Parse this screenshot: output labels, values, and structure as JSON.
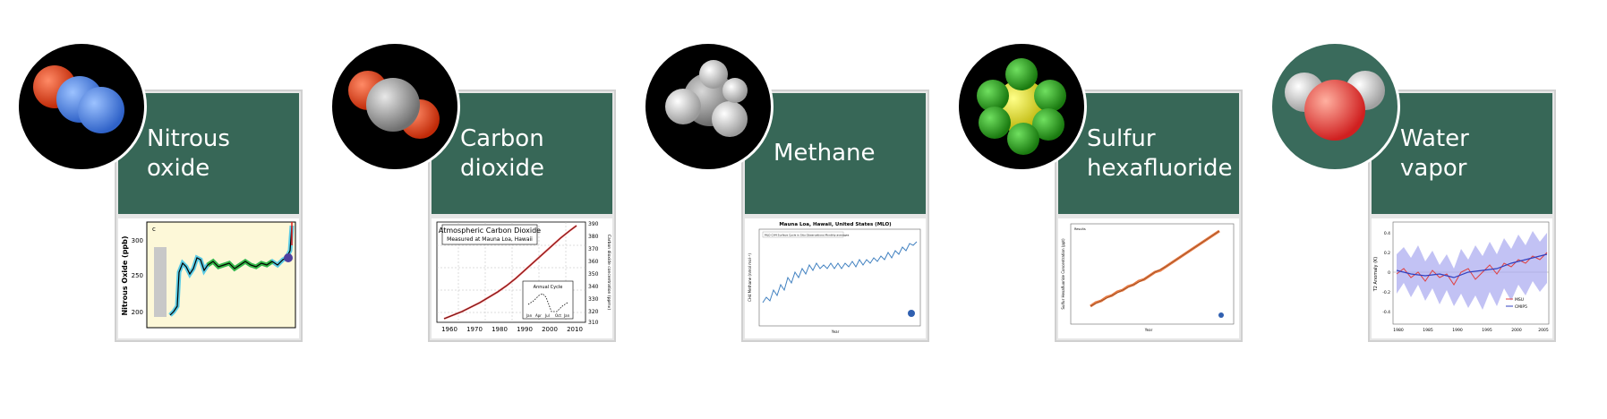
{
  "cards": [
    {
      "label": "Nitrous\noxide",
      "molecule_icon": "nitrous-oxide-molecule-icon",
      "chart": {
        "ylabel": "Nitrous Oxide (ppb)",
        "panel_letter": "c",
        "yticks": [
          "300",
          "250",
          "200"
        ]
      }
    },
    {
      "label": "Carbon\ndioxide",
      "molecule_icon": "carbon-dioxide-molecule-icon",
      "chart": {
        "title": "Atmospheric Carbon Dioxide",
        "subtitle": "Measured at Mauna Loa, Hawaii",
        "inset_title": "Annual Cycle",
        "inset_xticks": [
          "Jan",
          "Apr",
          "Jul",
          "Oct",
          "Jan"
        ],
        "xticks": [
          "1960",
          "1970",
          "1980",
          "1990",
          "2000",
          "2010"
        ],
        "yticks_right": [
          "390",
          "380",
          "370",
          "360",
          "350",
          "340",
          "330",
          "320",
          "310"
        ],
        "ylabel_right": "Carbon dioxide concentration (ppmv)"
      }
    },
    {
      "label": "Methane",
      "molecule_icon": "methane-molecule-icon",
      "chart": {
        "title": "Mauna Loa, Hawaii, United States (MLO)",
        "legend": "MLO CH4 Surface Cycle in Situ Observations Monthly averages",
        "ylabel": "CH4 Methane (nmol mol⁻¹)",
        "xlabel": "Year"
      }
    },
    {
      "label": "Sulfur\nhexafluoride",
      "molecule_icon": "sulfur-hexafluoride-molecule-icon",
      "chart": {
        "legend": "Results",
        "ylabel": "Sulfur Hexafluoride Concentration (ppt)",
        "xlabel": "Year"
      }
    },
    {
      "label": "Water\nvapor",
      "molecule_icon": "water-vapor-molecule-icon",
      "chart": {
        "ylabel": "T2 Anomaly (K)",
        "yticks": [
          "0.4",
          "0.2",
          "0",
          "-0.2",
          "-0.4"
        ],
        "xticks": [
          "1980",
          "1985",
          "1990",
          "1995",
          "2000",
          "2005"
        ],
        "legend": [
          "MSU",
          "CMIP5"
        ]
      }
    }
  ],
  "colors": {
    "panel_green": "#376757",
    "oxygen_red": "#e8401c",
    "nitrogen_blue": "#4a86e8",
    "carbon_gray": "#a0a0a0",
    "sulfur_yellow": "#e8e020",
    "fluorine_green": "#2ea020"
  }
}
